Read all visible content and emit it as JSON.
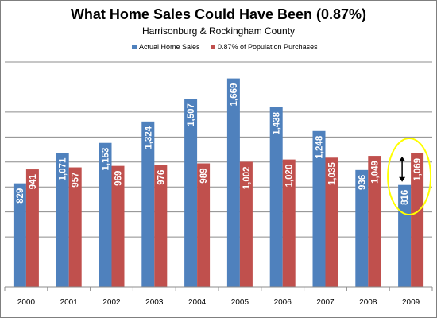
{
  "chart_data": {
    "type": "bar",
    "title": "What Home Sales Could Have Been (0.87%)",
    "subtitle": "Harrisonburg & Rockingham County",
    "categories": [
      "2000",
      "2001",
      "2002",
      "2003",
      "2004",
      "2005",
      "2006",
      "2007",
      "2008",
      "2009"
    ],
    "series": [
      {
        "name": "Actual Home Sales",
        "color": "#4f81bd",
        "values": [
          829,
          1071,
          1153,
          1324,
          1507,
          1669,
          1438,
          1248,
          936,
          816
        ],
        "labels": [
          "829",
          "1,071",
          "1,153",
          "1,324",
          "1,507",
          "1,669",
          "1,438",
          "1,248",
          "936",
          "816"
        ]
      },
      {
        "name": "0.87% of Population Purchases",
        "color": "#c0504d",
        "values": [
          941,
          957,
          969,
          976,
          989,
          1002,
          1020,
          1035,
          1049,
          1069
        ],
        "labels": [
          "941",
          "957",
          "969",
          "976",
          "989",
          "1,002",
          "1,020",
          "1,035",
          "1,049",
          "1,069"
        ]
      }
    ],
    "ylim": [
      0,
      1800
    ],
    "gridlines": true,
    "legend_position": "top",
    "annotation": {
      "type": "circle-with-double-arrow",
      "category": "2009",
      "circle_color": "#ffff00"
    }
  }
}
